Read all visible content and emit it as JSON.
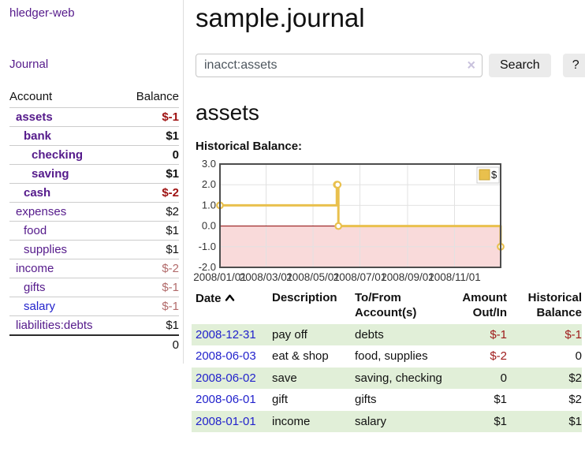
{
  "colors": {
    "link_purple": "#551a8b",
    "link_blue": "#2222cc",
    "negative_dark": "#9e1111",
    "negative_soft": "#b26b6b",
    "row_stripe_green": "#e1efd8",
    "button_bg": "#ebebeb"
  },
  "sidebar": {
    "brand": "hledger-web",
    "nav_journal": "Journal",
    "accounts": {
      "header_account": "Account",
      "header_balance": "Balance",
      "rows": [
        {
          "name": "assets",
          "balance": "$-1",
          "indent": 1,
          "bold": true,
          "name_color": "purple",
          "balance_color": "dark"
        },
        {
          "name": "bank",
          "balance": "$1",
          "indent": 2,
          "bold": true,
          "name_color": "purple",
          "balance_color": "black"
        },
        {
          "name": "checking",
          "balance": "0",
          "indent": 3,
          "bold": true,
          "name_color": "purple",
          "balance_color": "black"
        },
        {
          "name": "saving",
          "balance": "$1",
          "indent": 3,
          "bold": true,
          "name_color": "purple",
          "balance_color": "black"
        },
        {
          "name": "cash",
          "balance": "$-2",
          "indent": 2,
          "bold": true,
          "name_color": "purple",
          "balance_color": "dark"
        },
        {
          "name": "expenses",
          "balance": "$2",
          "indent": 1,
          "bold": false,
          "name_color": "purple",
          "balance_color": "black"
        },
        {
          "name": "food",
          "balance": "$1",
          "indent": 2,
          "bold": false,
          "name_color": "purple",
          "balance_color": "black"
        },
        {
          "name": "supplies",
          "balance": "$1",
          "indent": 2,
          "bold": false,
          "name_color": "purple",
          "balance_color": "black"
        },
        {
          "name": "income",
          "balance": "$-2",
          "indent": 1,
          "bold": false,
          "name_color": "purple",
          "balance_color": "soft"
        },
        {
          "name": "gifts",
          "balance": "$-1",
          "indent": 2,
          "bold": false,
          "name_color": "purple",
          "balance_color": "soft"
        },
        {
          "name": "salary",
          "balance": "$-1",
          "indent": 2,
          "bold": false,
          "name_color": "blue",
          "balance_color": "soft"
        },
        {
          "name": "liabilities:debts",
          "balance": "$1",
          "indent": 1,
          "bold": false,
          "name_color": "purple",
          "balance_color": "black"
        }
      ],
      "total": "0"
    }
  },
  "main": {
    "title": "sample.journal",
    "search": {
      "value": "inacct:assets",
      "clear_icon": "×",
      "search_button": "Search",
      "help_button": "?"
    },
    "heading": "assets",
    "chart_label": "Historical Balance:",
    "register": {
      "headers": {
        "date": "Date",
        "sort_icon": "chevron-up",
        "description": "Description",
        "accounts": "To/From Account(s)",
        "amount": "Amount Out/In",
        "balance": "Historical Balance"
      },
      "rows": [
        {
          "date": "2008-12-31",
          "description": "pay off",
          "accounts": "debts",
          "amount": "$-1",
          "balance": "$-1",
          "amount_negative": true,
          "balance_negative": true
        },
        {
          "date": "2008-06-03",
          "description": "eat & shop",
          "accounts": "food, supplies",
          "amount": "$-2",
          "balance": "0",
          "amount_negative": true,
          "balance_negative": false
        },
        {
          "date": "2008-06-02",
          "description": "save",
          "accounts": "saving, checking",
          "amount": "0",
          "balance": "$2",
          "amount_negative": false,
          "balance_negative": false
        },
        {
          "date": "2008-06-01",
          "description": "gift",
          "accounts": "gifts",
          "amount": "$1",
          "balance": "$2",
          "amount_negative": false,
          "balance_negative": false
        },
        {
          "date": "2008-01-01",
          "description": "income",
          "accounts": "salary",
          "amount": "$1",
          "balance": "$1",
          "amount_negative": false,
          "balance_negative": false
        }
      ]
    }
  },
  "chart_data": {
    "type": "line",
    "title": "Historical Balance:",
    "step": true,
    "x_type": "date",
    "x_range": [
      "2008-01-01",
      "2008-12-31"
    ],
    "ylim": [
      -2.0,
      3.0
    ],
    "yticks": [
      "3.0",
      "2.0",
      "1.0",
      "0.0",
      "-1.0",
      "-2.0"
    ],
    "xticks": [
      {
        "date": "2008-01-01",
        "label": "2008/01/01"
      },
      {
        "date": "2008-03-01",
        "label": "2008/03/01"
      },
      {
        "date": "2008-05-01",
        "label": "2008/05/01"
      },
      {
        "date": "2008-07-01",
        "label": "2008/07/01"
      },
      {
        "date": "2008-09-01",
        "label": "2008/09/01"
      },
      {
        "date": "2008-11-01",
        "label": "2008/11/01"
      }
    ],
    "grid": true,
    "legend": {
      "position": "top-right",
      "entries": [
        {
          "label": "$",
          "color": "#e9c04d"
        }
      ]
    },
    "series": [
      {
        "name": "$",
        "color": "#e9c04d",
        "marker": "open-circle",
        "points": [
          {
            "x": "2008-01-01",
            "y": 1
          },
          {
            "x": "2008-06-01",
            "y": 2
          },
          {
            "x": "2008-06-02",
            "y": 2
          },
          {
            "x": "2008-06-03",
            "y": 0
          },
          {
            "x": "2008-12-31",
            "y": -1
          }
        ]
      }
    ],
    "colors": {
      "negative_fill": "#f9dada",
      "zero_line": "#8b0000",
      "grid": "#e2e2e2",
      "border": "#4d4d4d"
    }
  }
}
